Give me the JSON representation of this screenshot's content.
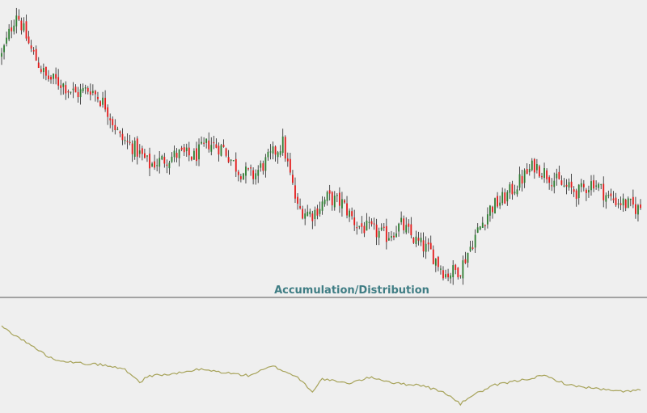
{
  "indicator_title": "Accumulation/Distribution",
  "colors": {
    "background": "#efefef",
    "up_candle": "#2e7d32",
    "down_candle": "#e31b1b",
    "wick": "#222222",
    "divider": "#555555",
    "indicator_line": "#a7a35a",
    "indicator_title": "#3f7d84"
  },
  "chart_data": [
    {
      "type": "candlestick",
      "title": "",
      "xlabel": "",
      "ylabel": "",
      "grid": false,
      "legend": "none",
      "ylim": [
        0,
        100
      ],
      "note_units": "relative price level, 0 = lowest visible, 100 = highest visible (no axis printed)",
      "bars": 260,
      "price_path": [
        [
          0,
          82
        ],
        [
          6,
          98
        ],
        [
          12,
          84
        ],
        [
          18,
          74
        ],
        [
          24,
          72
        ],
        [
          30,
          68
        ],
        [
          36,
          70
        ],
        [
          42,
          64
        ],
        [
          48,
          52
        ],
        [
          54,
          48
        ],
        [
          60,
          42
        ],
        [
          66,
          44
        ],
        [
          72,
          46
        ],
        [
          78,
          45
        ],
        [
          84,
          50
        ],
        [
          90,
          48
        ],
        [
          96,
          40
        ],
        [
          102,
          38
        ],
        [
          108,
          44
        ],
        [
          114,
          50
        ],
        [
          120,
          26
        ],
        [
          126,
          24
        ],
        [
          132,
          30
        ],
        [
          138,
          28
        ],
        [
          144,
          20
        ],
        [
          150,
          18
        ],
        [
          156,
          16
        ],
        [
          162,
          20
        ],
        [
          168,
          14
        ],
        [
          174,
          10
        ],
        [
          180,
          2
        ],
        [
          186,
          4
        ],
        [
          192,
          16
        ],
        [
          198,
          26
        ],
        [
          204,
          30
        ],
        [
          210,
          36
        ],
        [
          216,
          42
        ],
        [
          222,
          38
        ],
        [
          228,
          34
        ],
        [
          234,
          32
        ],
        [
          240,
          36
        ],
        [
          246,
          30
        ],
        [
          252,
          28
        ],
        [
          258,
          26
        ],
        [
          260,
          27
        ]
      ]
    },
    {
      "type": "line",
      "title": "Accumulation/Distribution",
      "series": [
        {
          "values_path": [
            [
              0,
              100
            ],
            [
              10,
              80
            ],
            [
              20,
              60
            ],
            [
              30,
              54
            ],
            [
              40,
              52
            ],
            [
              50,
              46
            ],
            [
              56,
              30
            ],
            [
              60,
              38
            ],
            [
              70,
              40
            ],
            [
              80,
              46
            ],
            [
              90,
              42
            ],
            [
              100,
              38
            ],
            [
              110,
              50
            ],
            [
              120,
              36
            ],
            [
              126,
              18
            ],
            [
              130,
              34
            ],
            [
              140,
              28
            ],
            [
              150,
              36
            ],
            [
              160,
              28
            ],
            [
              170,
              26
            ],
            [
              180,
              16
            ],
            [
              186,
              2
            ],
            [
              190,
              12
            ],
            [
              200,
              26
            ],
            [
              210,
              32
            ],
            [
              220,
              38
            ],
            [
              230,
              26
            ],
            [
              240,
              22
            ],
            [
              250,
              18
            ],
            [
              260,
              20
            ]
          ]
        }
      ]
    }
  ]
}
